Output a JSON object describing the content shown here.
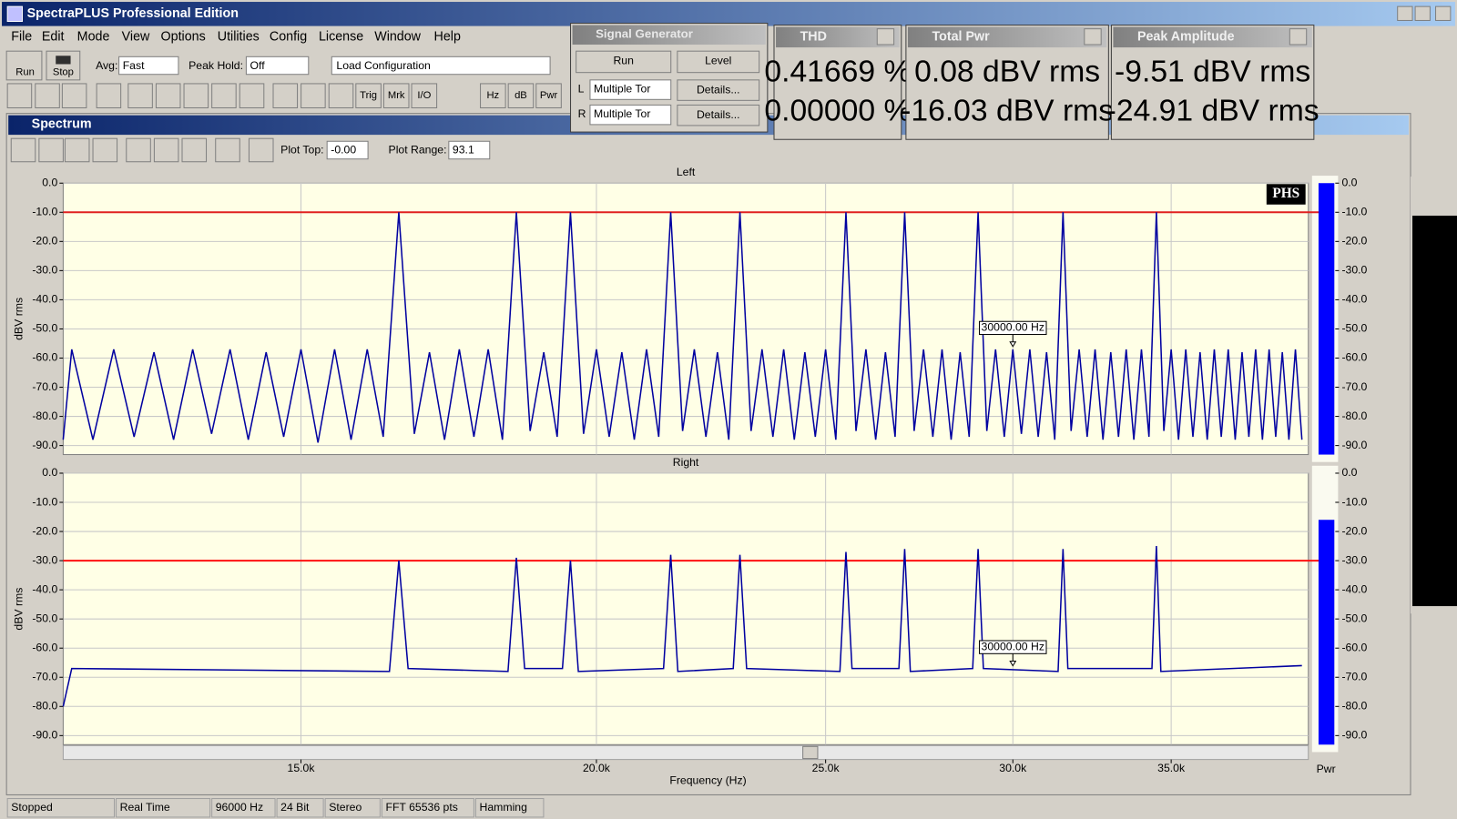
{
  "window": {
    "title": "SpectraPLUS Professional Edition"
  },
  "menu": [
    "File",
    "Edit",
    "Mode",
    "View",
    "Options",
    "Utilities",
    "Config",
    "License",
    "Window",
    "Help"
  ],
  "toolbar": {
    "run": "Run",
    "stop": "Stop",
    "avg_label": "Avg:",
    "avg": "Fast",
    "peak_hold_label": "Peak Hold:",
    "peak_hold": "Off",
    "config": "Load Configuration",
    "buttons": [
      "Trig",
      "Mrk",
      "I/O",
      "Hz",
      "dB",
      "Pwr"
    ]
  },
  "signal_generator": {
    "title": "Signal Generator",
    "run": "Run",
    "level": "Level",
    "channels": [
      {
        "label": "L",
        "mode": "Multiple Tor",
        "details": "Details..."
      },
      {
        "label": "R",
        "mode": "Multiple Tor",
        "details": "Details..."
      }
    ]
  },
  "readouts": [
    {
      "title": "THD",
      "lines": [
        "0.41669 %",
        "0.00000 %"
      ]
    },
    {
      "title": "Total Pwr",
      "lines": [
        "0.08 dBV rms",
        "-16.03 dBV rms"
      ]
    },
    {
      "title": "Peak Amplitude",
      "lines": [
        "-9.51 dBV rms",
        "-24.91 dBV rms"
      ]
    }
  ],
  "spectrum_window": {
    "title": "Spectrum",
    "plot_top_label": "Plot Top:",
    "plot_top": "-0.00",
    "plot_range_label": "Plot Range:",
    "plot_range": "93.1",
    "meter_label": "Pwr",
    "badge": "PHS"
  },
  "chart_data": [
    {
      "type": "line",
      "title": "Left",
      "ylabel": "dBV rms",
      "xscale": "log",
      "xlim": [
        11900,
        40000
      ],
      "ylim": [
        -93.1,
        0
      ],
      "grid": true,
      "color": "#0000a0",
      "xticks": [
        15000,
        20000,
        25000,
        30000,
        35000
      ],
      "yticks": [
        {
          "value": 0,
          "label": "0.0"
        },
        {
          "value": -10,
          "label": "-10.0"
        },
        {
          "value": -20,
          "label": "-20.0"
        },
        {
          "value": -30,
          "label": "-30.0"
        },
        {
          "value": -40,
          "label": "-40.0"
        },
        {
          "value": -50,
          "label": "-50.0"
        },
        {
          "value": -60,
          "label": "-60.0"
        },
        {
          "value": -70,
          "label": "-70.0"
        },
        {
          "value": -80,
          "label": "-80.0"
        },
        {
          "value": -90,
          "label": "-90.0"
        }
      ],
      "x": [
        11900,
        12000,
        12250,
        12500,
        12750,
        13000,
        13250,
        13500,
        13750,
        14000,
        14250,
        14500,
        14750,
        15000,
        15250,
        15500,
        15750,
        16000,
        16250,
        16500,
        16750,
        17000,
        17250,
        17500,
        17750,
        18000,
        18250,
        18500,
        18750,
        19000,
        19250,
        19500,
        19750,
        20000,
        20250,
        20500,
        20750,
        21000,
        21250,
        21500,
        21750,
        22000,
        22250,
        22500,
        22750,
        23000,
        23250,
        23500,
        23750,
        24000,
        24250,
        24500,
        24750,
        25000,
        25250,
        25500,
        25750,
        26000,
        26250,
        26500,
        26750,
        27000,
        27250,
        27500,
        27750,
        28000,
        28250,
        28500,
        28750,
        29000,
        29250,
        29500,
        29750,
        30000,
        30250,
        30500,
        30750,
        31000,
        31250,
        31500,
        31750,
        32000,
        32250,
        32500,
        32750,
        33000,
        33250,
        33500,
        33750,
        34000,
        34250,
        34500,
        34750,
        35000,
        35250,
        35500,
        35750,
        36000,
        36250,
        36500,
        36750,
        37000,
        37250,
        37500,
        37750,
        38000,
        38250,
        38500,
        38750,
        39000,
        39250,
        39500,
        39750
      ],
      "values": [
        -88,
        -57,
        -88,
        -57,
        -87,
        -58,
        -88,
        -57,
        -86,
        -57,
        -88,
        -58,
        -87,
        -57,
        -89,
        -57,
        -88,
        -57,
        -87,
        -10,
        -86,
        -58,
        -88,
        -57,
        -87,
        -57,
        -88,
        -10,
        -85,
        -58,
        -87,
        -10,
        -86,
        -57,
        -87,
        -58,
        -88,
        -57,
        -87,
        -10,
        -85,
        -57,
        -87,
        -58,
        -88,
        -10,
        -85,
        -57,
        -87,
        -57,
        -88,
        -58,
        -87,
        -57,
        -88,
        -10,
        -85,
        -57,
        -88,
        -58,
        -87,
        -10,
        -85,
        -57,
        -87,
        -57,
        -88,
        -58,
        -87,
        -10,
        -85,
        -57,
        -87,
        -57,
        -86,
        -57,
        -87,
        -58,
        -88,
        -10,
        -85,
        -57,
        -87,
        -57,
        -88,
        -58,
        -87,
        -57,
        -88,
        -57,
        -87,
        -10,
        -85,
        -57,
        -88,
        -57,
        -87,
        -58,
        -88,
        -57,
        -87,
        -57,
        -88,
        -58,
        -87,
        -57,
        -88,
        -57,
        -87,
        -58,
        -88,
        -57,
        -88
      ],
      "threshold": {
        "value": -10,
        "color": "#e02020"
      },
      "marker": {
        "x": 30000,
        "label": "30000.00 Hz"
      },
      "meter": {
        "value": 0,
        "color": "#0000ff"
      }
    },
    {
      "type": "line",
      "title": "Right",
      "ylabel": "dBV rms",
      "xlabel": "Frequency (Hz)",
      "xscale": "log",
      "xlim": [
        11900,
        40000
      ],
      "ylim": [
        -93.1,
        0
      ],
      "grid": true,
      "color": "#0000a0",
      "xticks": [
        {
          "value": 15000,
          "label": "15.0k"
        },
        {
          "value": 20000,
          "label": "20.0k"
        },
        {
          "value": 25000,
          "label": "25.0k"
        },
        {
          "value": 30000,
          "label": "30.0k"
        },
        {
          "value": 35000,
          "label": "35.0k"
        }
      ],
      "yticks": [
        {
          "value": 0,
          "label": "0.0"
        },
        {
          "value": -10,
          "label": "-10.0"
        },
        {
          "value": -20,
          "label": "-20.0"
        },
        {
          "value": -30,
          "label": "-30.0"
        },
        {
          "value": -40,
          "label": "-40.0"
        },
        {
          "value": -50,
          "label": "-50.0"
        },
        {
          "value": -60,
          "label": "-60.0"
        },
        {
          "value": -70,
          "label": "-70.0"
        },
        {
          "value": -80,
          "label": "-80.0"
        },
        {
          "value": -90,
          "label": "-90.0"
        }
      ],
      "x": [
        11900,
        12000,
        16350,
        16500,
        16650,
        18350,
        18500,
        18650,
        19350,
        19500,
        19650,
        21350,
        21500,
        21650,
        22850,
        23000,
        23150,
        25350,
        25500,
        25650,
        26850,
        27000,
        27150,
        28850,
        29000,
        29150,
        31350,
        31500,
        31650,
        34350,
        34500,
        34650,
        39750
      ],
      "values": [
        -80,
        -67,
        -68,
        -30,
        -67,
        -68,
        -29,
        -67,
        -67,
        -30,
        -68,
        -67,
        -28,
        -68,
        -67,
        -28,
        -67,
        -68,
        -27,
        -67,
        -67,
        -26,
        -68,
        -67,
        -26,
        -67,
        -68,
        -26,
        -67,
        -67,
        -25,
        -68,
        -66
      ],
      "threshold": {
        "value": -30,
        "color": "#ff1010"
      },
      "marker": {
        "x": 30000,
        "label": "30000.00 Hz"
      },
      "meter": {
        "value": -16,
        "color": "#0000ff"
      }
    }
  ],
  "status_bar": [
    "Stopped",
    "Real Time",
    "96000 Hz",
    "24 Bit",
    "Stereo",
    "FFT 65536 pts",
    "Hamming"
  ]
}
